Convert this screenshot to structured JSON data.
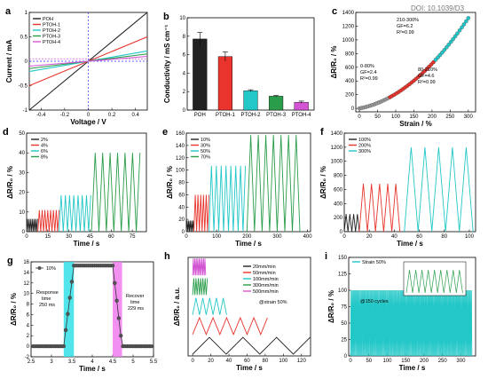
{
  "doi_text": "DOI: 10.1039/D3",
  "colors": {
    "black": "#222222",
    "red": "#e8342c",
    "cyan": "#22c7c7",
    "green": "#2a9d4a",
    "magenta": "#d455d4",
    "grey": "#999999",
    "blue": "#3030ff",
    "shadeCyan": "#33e0e8",
    "shadeMagenta": "#f07cf0"
  },
  "chart_data": [
    {
      "id": "a",
      "letter": "a",
      "type": "line",
      "xlabel": "Voltage / V",
      "ylabel": "Current / mA",
      "xlim": [
        -0.5,
        0.5
      ],
      "ylim": [
        -1,
        1
      ],
      "xticks": [
        -0.4,
        -0.2,
        0.0,
        0.2,
        0.4
      ],
      "yticks": [
        -1,
        -0.5,
        0,
        0.5,
        1
      ],
      "legend": "top-left",
      "series": [
        {
          "name": "POH",
          "color": "black",
          "slope": 2.0
        },
        {
          "name": "PTOH-1",
          "color": "red",
          "slope": 1.0
        },
        {
          "name": "PTOH-2",
          "color": "cyan",
          "slope": 0.42
        },
        {
          "name": "PTOH-3",
          "color": "green",
          "slope": 0.3
        },
        {
          "name": "PTOH-4",
          "color": "magenta",
          "slope": 0.2
        }
      ]
    },
    {
      "id": "b",
      "letter": "b",
      "type": "bar",
      "ylabel": "Conductivity / mS cm⁻¹",
      "ylim": [
        0,
        10
      ],
      "yticks": [
        0,
        2,
        4,
        6,
        8,
        10
      ],
      "categories": [
        "POH",
        "PTOH-1",
        "PTOH-2",
        "PTOH-3",
        "PTOH-4"
      ],
      "values": [
        7.7,
        5.8,
        2.1,
        1.5,
        0.85
      ],
      "errors": [
        0.7,
        0.5,
        0.1,
        0.08,
        0.12
      ],
      "bar_colors": [
        "black",
        "red",
        "cyan",
        "green",
        "magenta"
      ]
    },
    {
      "id": "c",
      "letter": "c",
      "type": "scatter",
      "xlabel": "Strain / %",
      "ylabel": "ΔR/R₀ / %",
      "xlim": [
        -10,
        320
      ],
      "ylim": [
        -50,
        1400
      ],
      "xticks": [
        0,
        50,
        100,
        150,
        200,
        250,
        300
      ],
      "yticks": [
        0,
        200,
        400,
        600,
        800,
        1000,
        1200,
        1400
      ],
      "annotations": [
        "0-80%",
        "GF=2.4",
        "R²=0.99",
        "80-210%",
        "GF=4.6",
        "R²=0.99",
        "210-300%",
        "GF=6.2",
        "R²=0.99"
      ],
      "segments": [
        {
          "color": "grey",
          "x": [
            0,
            80
          ],
          "gf": 2.4
        },
        {
          "color": "red",
          "x": [
            80,
            210
          ],
          "gf": 4.6
        },
        {
          "color": "cyan",
          "x": [
            210,
            300
          ],
          "gf": 6.2
        }
      ]
    },
    {
      "id": "d",
      "letter": "d",
      "type": "line",
      "xlabel": "Time / s",
      "ylabel": "ΔR/R₀ / %",
      "xlim": [
        0,
        85
      ],
      "ylim": [
        0,
        50
      ],
      "xticks": [
        0,
        15,
        30,
        45,
        60,
        75
      ],
      "yticks": [
        0,
        10,
        20,
        30,
        40,
        50
      ],
      "legend": "top-left",
      "series": [
        {
          "name": "2%",
          "color": "black",
          "t": [
            0,
            8
          ],
          "amp": 6.5,
          "period": 1.2
        },
        {
          "name": "4%",
          "color": "red",
          "t": [
            8,
            23
          ],
          "amp": 11,
          "period": 2.0
        },
        {
          "name": "6%",
          "color": "cyan",
          "t": [
            23,
            46
          ],
          "amp": 18.5,
          "period": 3.0
        },
        {
          "name": "8%",
          "color": "green",
          "t": [
            46,
            82
          ],
          "amp": 40,
          "period": 5.3
        }
      ]
    },
    {
      "id": "e",
      "letter": "e",
      "type": "line",
      "xlabel": "Time / s",
      "ylabel": "ΔR/R₀ / %",
      "xlim": [
        0,
        410
      ],
      "ylim": [
        0,
        160
      ],
      "xticks": [
        0,
        100,
        200,
        300,
        400
      ],
      "yticks": [
        0,
        20,
        40,
        60,
        80,
        100,
        120,
        140,
        160
      ],
      "legend": "top-left",
      "series": [
        {
          "name": "10%",
          "color": "black",
          "t": [
            0,
            25
          ],
          "amp": 18,
          "period": 5
        },
        {
          "name": "30%",
          "color": "red",
          "t": [
            25,
            75
          ],
          "amp": 60,
          "period": 9
        },
        {
          "name": "50%",
          "color": "cyan",
          "t": [
            75,
            200
          ],
          "amp": 107,
          "period": 16
        },
        {
          "name": "70%",
          "color": "green",
          "t": [
            200,
            385
          ],
          "amp": 157,
          "period": 25
        }
      ]
    },
    {
      "id": "f",
      "letter": "f",
      "type": "line",
      "xlabel": "Time / s",
      "ylabel": "ΔR/R₀ / %",
      "xlim": [
        0,
        105
      ],
      "ylim": [
        0,
        1400
      ],
      "xticks": [
        0,
        20,
        40,
        60,
        80,
        100
      ],
      "yticks": [
        0,
        200,
        400,
        600,
        800,
        1000,
        1200,
        1400
      ],
      "legend": "top-left",
      "series": [
        {
          "name": "100%",
          "color": "black",
          "t": [
            0,
            12
          ],
          "amp": 250,
          "period": 3
        },
        {
          "name": "200%",
          "color": "red",
          "t": [
            12,
            45
          ],
          "amp": 680,
          "period": 6.5
        },
        {
          "name": "300%",
          "color": "cyan",
          "t": [
            48,
            103
          ],
          "amp": 1200,
          "period": 11
        }
      ]
    },
    {
      "id": "g",
      "letter": "g",
      "type": "line",
      "xlabel": "Time / s",
      "ylabel": "ΔR/R₀ / %",
      "xlim": [
        2.5,
        5.5
      ],
      "ylim": [
        -2,
        16
      ],
      "xticks": [
        2.5,
        3.0,
        3.5,
        4.0,
        4.5,
        5.0,
        5.5
      ],
      "yticks": [
        -2,
        0,
        2,
        4,
        6,
        8,
        10,
        12,
        14,
        16
      ],
      "series_name": "10%",
      "annotations": [
        "Response",
        "time",
        "250 ms",
        "Recover",
        "time",
        "229 ms"
      ],
      "rise": [
        3.3,
        3.55
      ],
      "fall": [
        4.5,
        4.73
      ],
      "high": 15.3,
      "low": 0
    },
    {
      "id": "h",
      "letter": "h",
      "type": "line",
      "xlabel": "Time / s",
      "ylabel": "ΔR/R₀ / a.u.",
      "xlim": [
        -5,
        130
      ],
      "xticks": [
        0,
        20,
        40,
        60,
        80,
        100,
        120
      ],
      "annotation": "@strain 50%",
      "legend": "top-right",
      "series": [
        {
          "name": "20mm/min",
          "color": "black",
          "t": [
            0,
            130
          ],
          "period": 37
        },
        {
          "name": "50mm/min",
          "color": "red",
          "t": [
            0,
            85
          ],
          "period": 15
        },
        {
          "name": "100mm/min",
          "color": "cyan",
          "t": [
            0,
            40
          ],
          "period": 7.5
        },
        {
          "name": "300mm/min",
          "color": "green",
          "t": [
            0,
            17
          ],
          "period": 2.5
        },
        {
          "name": "500mm/min",
          "color": "magenta",
          "t": [
            0,
            15
          ],
          "period": 1.6
        }
      ]
    },
    {
      "id": "i",
      "letter": "i",
      "type": "line",
      "xlabel": "Time / s",
      "ylabel": "ΔR/R₀ / %",
      "xlim": [
        -5,
        340
      ],
      "ylim": [
        0,
        150
      ],
      "xticks": [
        0,
        50,
        100,
        150,
        200,
        250,
        300
      ],
      "yticks": [
        0,
        25,
        50,
        75,
        100,
        125,
        150
      ],
      "series_name": "Strain 50%",
      "annotation": "@150 cycles",
      "amp": 100,
      "cycles": 150
    }
  ]
}
